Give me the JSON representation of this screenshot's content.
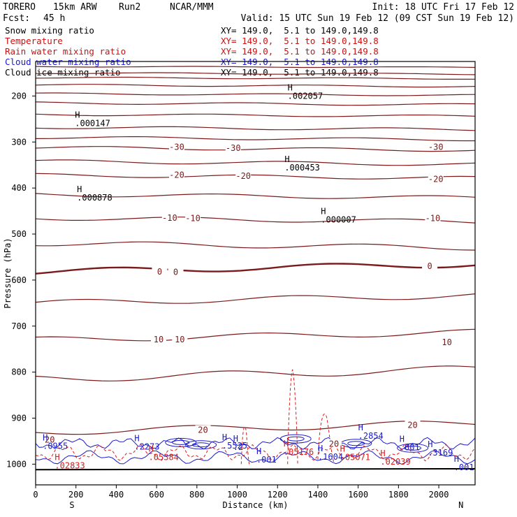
{
  "header": {
    "model": "TORERO",
    "grid": "15km ARW",
    "run": "Run2",
    "center": "NCAR/MMM",
    "init": "Init: 18 UTC Fri 17 Feb 12",
    "fcst_label": "Fcst:",
    "fcst_value": "45 h",
    "valid": "Valid: 15 UTC Sun 19 Feb 12 (09 CST Sun 19 Feb 12)"
  },
  "legend": [
    {
      "name": "Snow mixing ratio",
      "xy": "XY= 149.0,  5.1 to 149.0,149.8",
      "color": "#000000"
    },
    {
      "name": "Temperature",
      "xy": "XY= 149.0,  5.1 to 149.0,149.8",
      "color": "#cc1010"
    },
    {
      "name": "Rain water mixing ratio",
      "xy": "XY= 149.0,  5.1 to 149.0,149.8",
      "color": "#cc1010"
    },
    {
      "name": "Cloud water mixing ratio",
      "xy": "XY= 149.0,  5.1 to 149.0,149.8",
      "color": "#1a1acc"
    },
    {
      "name": "Cloud ice mixing ratio",
      "xy": "XY= 149.0,  5.1 to 149.0,149.8",
      "color": "#000000"
    }
  ],
  "colors": {
    "temperature": "#7a1a1a",
    "rain": "#dd1a1a",
    "cloud_water": "#1a1acc",
    "ice": "#000000",
    "frame": "#000000"
  },
  "chart_data": {
    "type": "contour-cross-section",
    "xlabel": "Distance (km)",
    "ylabel": "Pressure (hPa)",
    "xlim": [
      0,
      2180
    ],
    "ylim_hpa": [
      125,
      1045
    ],
    "x_ticks": [
      "0",
      "200",
      "400",
      "600",
      "800",
      "1000",
      "1200",
      "1400",
      "1600",
      "1800",
      "2000"
    ],
    "y_ticks": [
      "200",
      "300",
      "400",
      "500",
      "600",
      "700",
      "800",
      "900",
      "1000"
    ],
    "x_end_labels": {
      "left": "S",
      "right": "N"
    },
    "temperature_contour_labels": [
      {
        "text": "-30",
        "x": 700,
        "p": 311
      },
      {
        "text": "-30",
        "x": 980,
        "p": 313
      },
      {
        "text": "-30",
        "x": 1985,
        "p": 311
      },
      {
        "text": "-20",
        "x": 700,
        "p": 372
      },
      {
        "text": "-20",
        "x": 1030,
        "p": 374
      },
      {
        "text": "-20",
        "x": 1985,
        "p": 381
      },
      {
        "text": "-10",
        "x": 665,
        "p": 465
      },
      {
        "text": "-10",
        "x": 780,
        "p": 466
      },
      {
        "text": "-10",
        "x": 1970,
        "p": 466
      },
      {
        "text": "0",
        "x": 615,
        "p": 582
      },
      {
        "text": "0",
        "x": 695,
        "p": 583
      },
      {
        "text": "0",
        "x": 1955,
        "p": 570
      },
      {
        "text": "10",
        "x": 610,
        "p": 729
      },
      {
        "text": "10",
        "x": 715,
        "p": 729
      },
      {
        "text": "10",
        "x": 2040,
        "p": 735
      },
      {
        "text": "20",
        "x": 830,
        "p": 926
      },
      {
        "text": "20",
        "x": 1870,
        "p": 915
      },
      {
        "text": "20",
        "x": 70,
        "p": 947
      },
      {
        "text": "20",
        "x": 1480,
        "p": 956
      }
    ],
    "maxima": [
      {
        "value": ".002057",
        "x": 1250,
        "p": 200,
        "series": "ice"
      },
      {
        "value": ".000147",
        "x": 195,
        "p": 259,
        "series": "ice"
      },
      {
        "value": ".000453",
        "x": 1235,
        "p": 356,
        "series": "ice"
      },
      {
        "value": ".000878",
        "x": 205,
        "p": 421,
        "series": "ice"
      },
      {
        "value": ".000007",
        "x": 1415,
        "p": 469,
        "series": "ice"
      },
      {
        "value": ".0955",
        "x": 35,
        "p": 961,
        "series": "cloud_water"
      },
      {
        "value": ".2273",
        "x": 490,
        "p": 962,
        "series": "cloud_water"
      },
      {
        "value": ".5525",
        "x": 925,
        "p": 960,
        "series": "cloud_water"
      },
      {
        "value": ".001",
        "x": 1095,
        "p": 990,
        "series": "cloud_water"
      },
      {
        "value": ".1604",
        "x": 1400,
        "p": 984,
        "series": "cloud_water"
      },
      {
        "value": ".2854",
        "x": 1600,
        "p": 939,
        "series": "cloud_water"
      },
      {
        "value": ".001",
        "x": 1805,
        "p": 964,
        "series": "cloud_water"
      },
      {
        "value": ".3169",
        "x": 1945,
        "p": 975,
        "series": "cloud_water"
      },
      {
        "value": ".001",
        "x": 2075,
        "p": 1007,
        "series": "cloud_water"
      },
      {
        "value": ".02833",
        "x": 95,
        "p": 1003,
        "series": "rain"
      },
      {
        "value": ".05384",
        "x": 560,
        "p": 985,
        "series": "rain"
      },
      {
        "value": ".05176",
        "x": 1230,
        "p": 974,
        "series": "rain"
      },
      {
        "value": ".05071",
        "x": 1510,
        "p": 985,
        "series": "rain"
      },
      {
        "value": ".02039",
        "x": 1710,
        "p": 995,
        "series": "rain"
      },
      {
        "value": ".2",
        "x": 980,
        "p": 963,
        "series": "cloud_water"
      }
    ]
  }
}
